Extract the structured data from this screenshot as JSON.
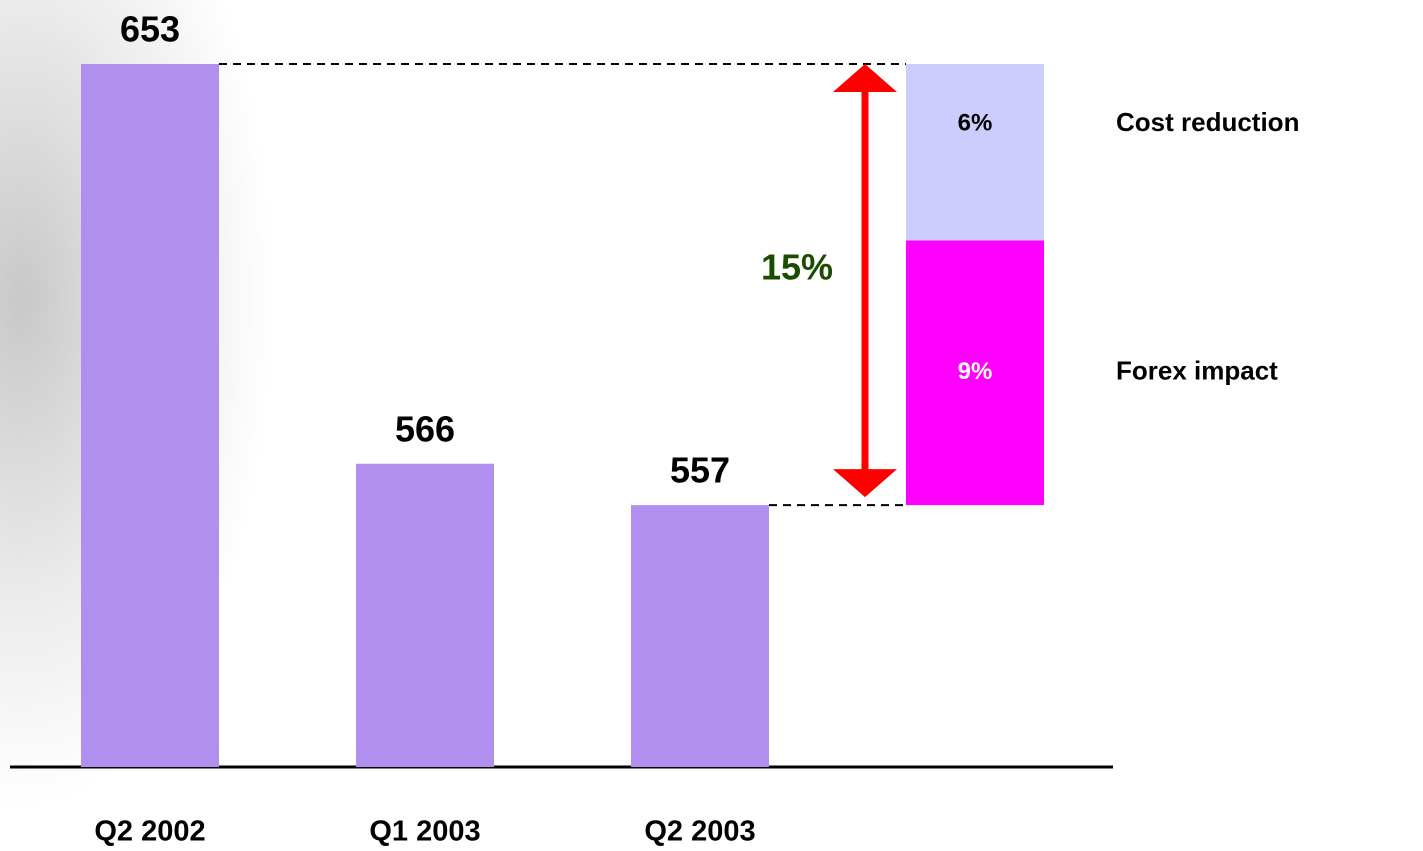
{
  "chart_data": {
    "type": "bar",
    "categories": [
      "Q2 2002",
      "Q1 2003",
      "Q2 2003"
    ],
    "values": [
      653,
      566,
      557
    ],
    "color": "#b18fee",
    "ylim": [
      500,
      653
    ],
    "breakdown": {
      "categories": [
        "Forex impact",
        "Cost reduction"
      ],
      "values": [
        9,
        6
      ],
      "value_labels": [
        "9%",
        "6%"
      ],
      "colors": [
        "#ff00ff",
        "#ccccff"
      ],
      "label_colors": [
        "#ffffff",
        "#000000"
      ],
      "total": 15,
      "total_label": "15%",
      "total_color": "#1a4d00",
      "arrow_color": "#ff0000"
    }
  }
}
